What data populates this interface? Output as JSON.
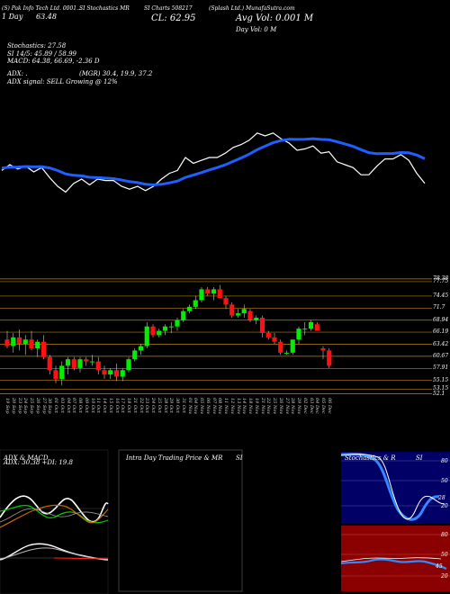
{
  "header": {
    "line1": "(S) Pak Info Tech Ltd. 0001...",
    "symbol_line": "SI Stochastics MR",
    "code_line": "SI Charts 508217",
    "company_line": "(Splash Ltd.) MunafaSutra.com",
    "day_line": "1 Day",
    "day_value": "63.48",
    "cl_label": "CL: 62.95",
    "avg_vol": "Avg Vol: 0.001 M",
    "day_vol": "Day Vol: 0   M",
    "stochastics": "Stochastics: 27.58",
    "si_line": "SI 14/5: 45.89 / 58.99",
    "macd_line": "MACD: 64.38, 66.69, -2.36  D",
    "adx_line": "ADX: .",
    "adx_vals": "(MGR) 30.4, 19.9, 37.2",
    "adx_signal": "ADX  signal: SELL Growing @ 12%"
  },
  "price_levels": [
    "78.38",
    "77.75",
    "74.45",
    "71.7",
    "68.94",
    "66.19",
    "63.42",
    "60.67",
    "57.91",
    "55.15",
    "53.15",
    "52.1"
  ],
  "dates": [
    "19 Sep",
    "20 Sep",
    "23 Sep",
    "24 Sep",
    "25 Sep",
    "26 Sep",
    "27 Sep",
    "30 Sep",
    "01 Oct",
    "03 Oct",
    "04 Oct",
    "07 Oct",
    "08 Oct",
    "09 Oct",
    "10 Oct",
    "11 Oct",
    "14 Oct",
    "15 Oct",
    "16 Oct",
    "17 Oct",
    "18 Oct",
    "21 Oct",
    "22 Oct",
    "23 Oct",
    "24 Oct",
    "25 Oct",
    "28 Oct",
    "29 Oct",
    "30 Oct",
    "31 Oct",
    "01 Nov",
    "04 Nov",
    "05 Nov",
    "06 Nov",
    "07 Nov",
    "08 Nov",
    "11 Nov",
    "12 Nov",
    "13 Nov",
    "14 Nov",
    "18 Nov",
    "19 Nov",
    "21 Nov",
    "22 Nov",
    "25 Nov",
    "26 Nov",
    "27 Nov",
    "28 Nov",
    "29 Nov",
    "02 Dec",
    "03 Dec",
    "04 Dec",
    "05 Dec",
    "06 Dec"
  ],
  "panels": {
    "adx_title": "ADX  & MACD",
    "adx_label": "ADX: 30.38  +DI: 19.8",
    "intraday_title": "Intra  Day Trading Price  & MR",
    "intraday_si": "SI",
    "stoch_title": "Stochastics & R",
    "stoch_si": "SI",
    "stoch_levels": [
      "80",
      "50",
      "20"
    ],
    "rsi_levels": [
      "80",
      "50",
      "20"
    ],
    "stoch_value": "28",
    "rsi_value": "45"
  },
  "chart_data": {
    "type": "candlestick",
    "ohlc": [
      [
        64.5,
        66.5,
        62.5,
        63.0
      ],
      [
        63.0,
        66.0,
        61.5,
        65.0
      ],
      [
        65.0,
        66.8,
        62.0,
        63.5
      ],
      [
        63.5,
        65.5,
        61.0,
        64.5
      ],
      [
        64.5,
        66.5,
        62.0,
        62.5
      ],
      [
        62.5,
        64.5,
        60.5,
        64.0
      ],
      [
        64.0,
        65.5,
        60.0,
        60.5
      ],
      [
        60.5,
        61.0,
        56.5,
        57.5
      ],
      [
        57.5,
        58.5,
        54.5,
        55.5
      ],
      [
        55.5,
        59.5,
        54.0,
        58.5
      ],
      [
        58.5,
        60.5,
        56.5,
        60.0
      ],
      [
        60.0,
        60.5,
        57.5,
        58.0
      ],
      [
        58.0,
        60.5,
        57.0,
        60.0
      ],
      [
        60.0,
        60.5,
        58.5,
        59.5
      ],
      [
        59.5,
        61.0,
        58.5,
        59.5
      ],
      [
        59.5,
        60.5,
        56.5,
        57.5
      ],
      [
        57.5,
        58.5,
        55.5,
        56.5
      ],
      [
        56.5,
        58.0,
        55.5,
        57.5
      ],
      [
        57.5,
        59.0,
        55.0,
        56.0
      ],
      [
        56.0,
        58.0,
        55.0,
        57.5
      ],
      [
        57.5,
        60.5,
        57.0,
        60.0
      ],
      [
        60.0,
        62.5,
        59.5,
        62.0
      ],
      [
        62.0,
        63.5,
        61.0,
        63.0
      ],
      [
        63.0,
        68.5,
        62.5,
        67.5
      ],
      [
        67.5,
        68.0,
        65.0,
        65.5
      ],
      [
        65.5,
        67.0,
        65.0,
        66.5
      ],
      [
        66.5,
        68.0,
        65.5,
        67.5
      ],
      [
        67.5,
        68.5,
        66.0,
        67.5
      ],
      [
        67.5,
        69.5,
        66.5,
        69.0
      ],
      [
        69.0,
        71.5,
        68.5,
        71.0
      ],
      [
        71.0,
        72.5,
        70.5,
        72.0
      ],
      [
        72.0,
        74.5,
        71.5,
        73.5
      ],
      [
        73.5,
        76.5,
        73.0,
        76.0
      ],
      [
        76.0,
        76.5,
        74.5,
        75.0
      ],
      [
        75.0,
        76.5,
        73.5,
        76.0
      ],
      [
        76.0,
        77.0,
        74.0,
        74.0
      ],
      [
        74.0,
        74.5,
        71.5,
        72.5
      ],
      [
        72.5,
        73.0,
        69.5,
        70.0
      ],
      [
        70.0,
        71.5,
        69.5,
        70.5
      ],
      [
        70.5,
        72.5,
        69.5,
        71.5
      ],
      [
        71.0,
        71.5,
        68.5,
        69.0
      ],
      [
        69.0,
        70.0,
        68.0,
        69.5
      ],
      [
        69.5,
        70.0,
        65.0,
        66.0
      ],
      [
        66.0,
        66.5,
        64.5,
        65.0
      ],
      [
        65.0,
        66.0,
        63.5,
        64.0
      ],
      [
        64.0,
        64.5,
        61.0,
        61.5
      ],
      [
        61.5,
        62.0,
        61.0,
        61.5
      ],
      [
        61.5,
        64.5,
        61.0,
        64.5
      ],
      [
        64.5,
        67.5,
        63.5,
        67.0
      ],
      [
        67.0,
        68.5,
        65.5,
        67.0
      ],
      [
        67.0,
        69.0,
        66.5,
        68.5
      ],
      [
        68.0,
        68.5,
        66.5,
        66.5
      ],
      [
        62.5,
        63.0,
        60.0,
        62.0
      ],
      [
        62.0,
        62.5,
        58.0,
        58.5
      ]
    ],
    "ylim": [
      52,
      80
    ]
  }
}
